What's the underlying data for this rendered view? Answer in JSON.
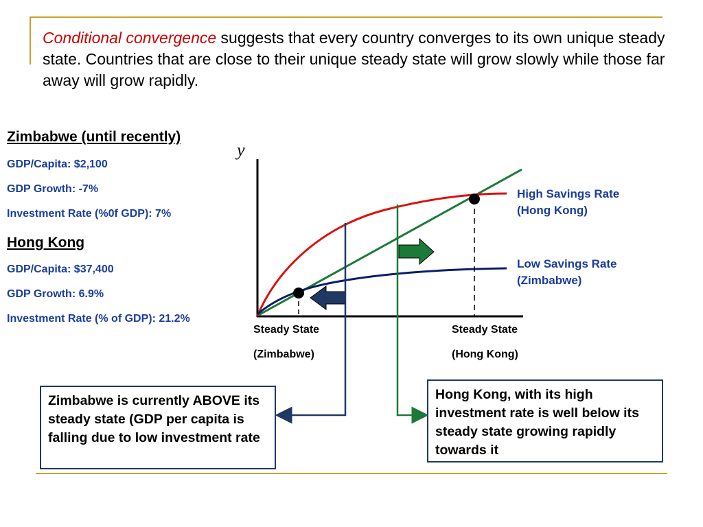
{
  "intro": {
    "emphasis": "Conditional convergence",
    "rest": " suggests that every country converges to its own unique steady state.  Countries that are close to their unique steady state will grow slowly while those far away will grow rapidly."
  },
  "zimbabwe": {
    "heading": "Zimbabwe (until recently)",
    "gdp_capita": "GDP/Capita: $2,100",
    "gdp_growth": "GDP Growth: -7%",
    "investment": "Investment Rate (%0f GDP): 7%"
  },
  "hong_kong": {
    "heading": "Hong Kong",
    "gdp_capita": "GDP/Capita: $37,400",
    "gdp_growth": "GDP Growth: 6.9%",
    "investment": "Investment Rate (% of GDP): 21.2%"
  },
  "diagram": {
    "y_axis_label": "y",
    "high_curve_label_1": "High Savings Rate",
    "high_curve_label_2": "(Hong Kong)",
    "low_curve_label_1": "Low Savings Rate",
    "low_curve_label_2": "(Zimbabwe)",
    "ss_zim_1": "Steady State",
    "ss_zim_2": "(Zimbabwe)",
    "ss_hk_1": "Steady State",
    "ss_hk_2": "(Hong Kong)",
    "colors": {
      "high_curve": "#dd1111",
      "low_curve": "#0a1f66",
      "depreciation_line": "#1c7a38",
      "left_arrow": "#1f3864",
      "right_arrow": "#1c7a38",
      "label_text": "#1a3d9e"
    }
  },
  "callouts": {
    "zimbabwe": "Zimbabwe is currently ABOVE its steady state (GDP per capita is falling due to low investment rate",
    "hong_kong": "Hong Kong, with its high investment rate is well below its steady state growing rapidly towards it"
  }
}
